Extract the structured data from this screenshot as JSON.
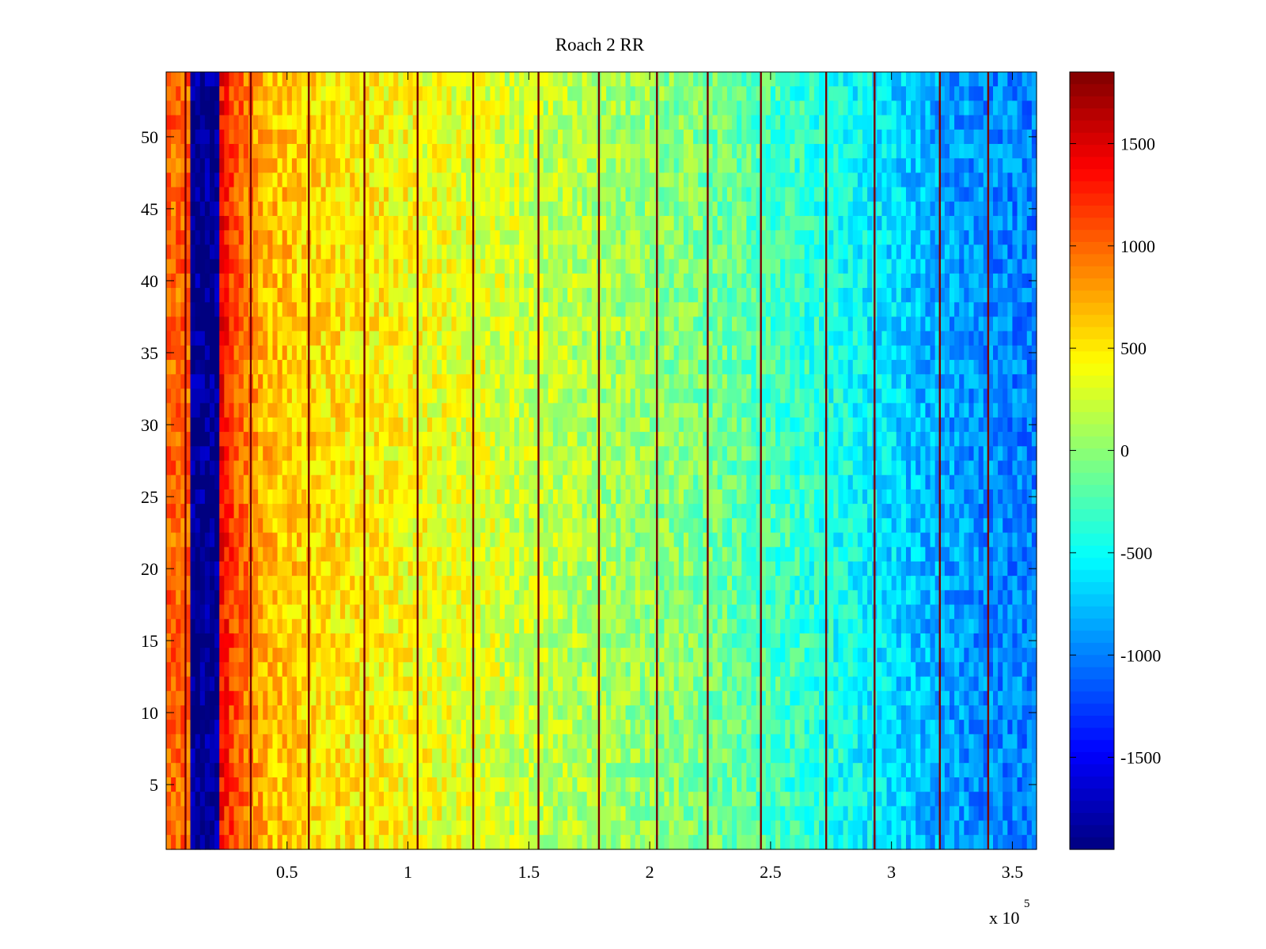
{
  "chart_data": {
    "type": "heatmap",
    "title": "Roach 2 RR",
    "xlabel": "",
    "ylabel": "",
    "x_multiplier_label": "x 10",
    "x_multiplier_exponent": "5",
    "xlim": [
      0,
      360000
    ],
    "ylim": [
      0.5,
      54.5
    ],
    "xticks": [
      50000,
      100000,
      150000,
      200000,
      250000,
      300000,
      350000
    ],
    "xtick_labels": [
      "0.5",
      "1",
      "1.5",
      "2",
      "2.5",
      "3",
      "3.5"
    ],
    "yticks": [
      5,
      10,
      15,
      20,
      25,
      30,
      35,
      40,
      45,
      50
    ],
    "ytick_labels": [
      "5",
      "10",
      "15",
      "20",
      "25",
      "30",
      "35",
      "40",
      "45",
      "50"
    ],
    "rows": 54,
    "colorbar": {
      "colormap": "jet",
      "limits": [
        -1950,
        1850
      ],
      "ticks": [
        -1500,
        -1000,
        -500,
        0,
        500,
        1000,
        1500
      ],
      "tick_labels": [
        "-1500",
        "-1000",
        "-500",
        "0",
        "500",
        "1000",
        "1500"
      ]
    },
    "column_profile": {
      "description": "mean value vs x across all rows",
      "x": [
        0,
        9000,
        10000,
        22000,
        23000,
        30000,
        40000,
        60000,
        80000,
        100000,
        130000,
        160000,
        190000,
        220000,
        250000,
        280000,
        300000,
        320000,
        340000,
        360000
      ],
      "value": [
        1000,
        1000,
        -1900,
        -1900,
        1350,
        1050,
        700,
        560,
        480,
        400,
        300,
        170,
        60,
        -60,
        -250,
        -470,
        -650,
        -850,
        -950,
        -1000
      ]
    },
    "dark_stripes_x": [
      8000,
      35000,
      59000,
      82000,
      104000,
      127000,
      154000,
      179000,
      203000,
      224000,
      246000,
      273000,
      293000,
      320000,
      340000
    ],
    "grid": false,
    "legend": "none"
  }
}
